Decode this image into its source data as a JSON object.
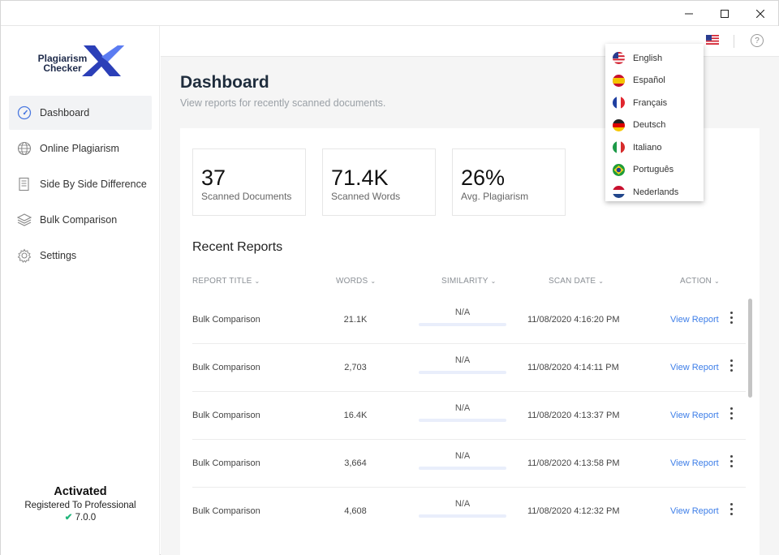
{
  "app": {
    "logo_line1": "Plagiarism",
    "logo_line2": "Checker"
  },
  "sidebar": {
    "items": [
      {
        "label": "Dashboard",
        "icon": "gauge-icon",
        "active": true
      },
      {
        "label": "Online Plagiarism",
        "icon": "globe-icon"
      },
      {
        "label": "Side By Side Difference",
        "icon": "document-icon"
      },
      {
        "label": "Bulk Comparison",
        "icon": "layers-icon"
      },
      {
        "label": "Settings",
        "icon": "gear-icon"
      }
    ],
    "activation": {
      "status": "Activated",
      "registered": "Registered To Professional",
      "version": "7.0.0"
    }
  },
  "header": {
    "help": "?"
  },
  "main": {
    "title": "Dashboard",
    "subtitle": "View reports for recently scanned documents.",
    "stats": [
      {
        "value": "37",
        "label": "Scanned Documents"
      },
      {
        "value": "71.4K",
        "label": "Scanned Words"
      },
      {
        "value": "26%",
        "label": "Avg. Plagiarism"
      }
    ],
    "recent_title": "Recent Reports",
    "columns": {
      "title": "REPORT TITLE",
      "words": "WORDS",
      "similarity": "SIMILARITY",
      "date": "SCAN DATE",
      "action": "ACTION"
    },
    "rows": [
      {
        "title": "Bulk Comparison",
        "words": "21.1K",
        "similarity": "N/A",
        "date": "11/08/2020 4:16:20 PM",
        "action": "View Report"
      },
      {
        "title": "Bulk Comparison",
        "words": "2,703",
        "similarity": "N/A",
        "date": "11/08/2020 4:14:11 PM",
        "action": "View Report"
      },
      {
        "title": "Bulk Comparison",
        "words": "16.4K",
        "similarity": "N/A",
        "date": "11/08/2020 4:13:37 PM",
        "action": "View Report"
      },
      {
        "title": "Bulk Comparison",
        "words": "3,664",
        "similarity": "N/A",
        "date": "11/08/2020 4:13:58 PM",
        "action": "View Report"
      },
      {
        "title": "Bulk Comparison",
        "words": "4,608",
        "similarity": "N/A",
        "date": "11/08/2020 4:12:32 PM",
        "action": "View Report"
      }
    ]
  },
  "languages": [
    {
      "label": "English",
      "flag": "us-flag-icon"
    },
    {
      "label": "Español",
      "flag": "spain-flag-icon"
    },
    {
      "label": "Français",
      "flag": "france-flag-icon"
    },
    {
      "label": "Deutsch",
      "flag": "germany-flag-icon"
    },
    {
      "label": "Italiano",
      "flag": "italy-flag-icon"
    },
    {
      "label": "Português",
      "flag": "brazil-flag-icon"
    },
    {
      "label": "Nederlands",
      "flag": "netherlands-flag-icon"
    }
  ],
  "colors": {
    "accent": "#3d7ee8",
    "check": "#1fb57a"
  }
}
